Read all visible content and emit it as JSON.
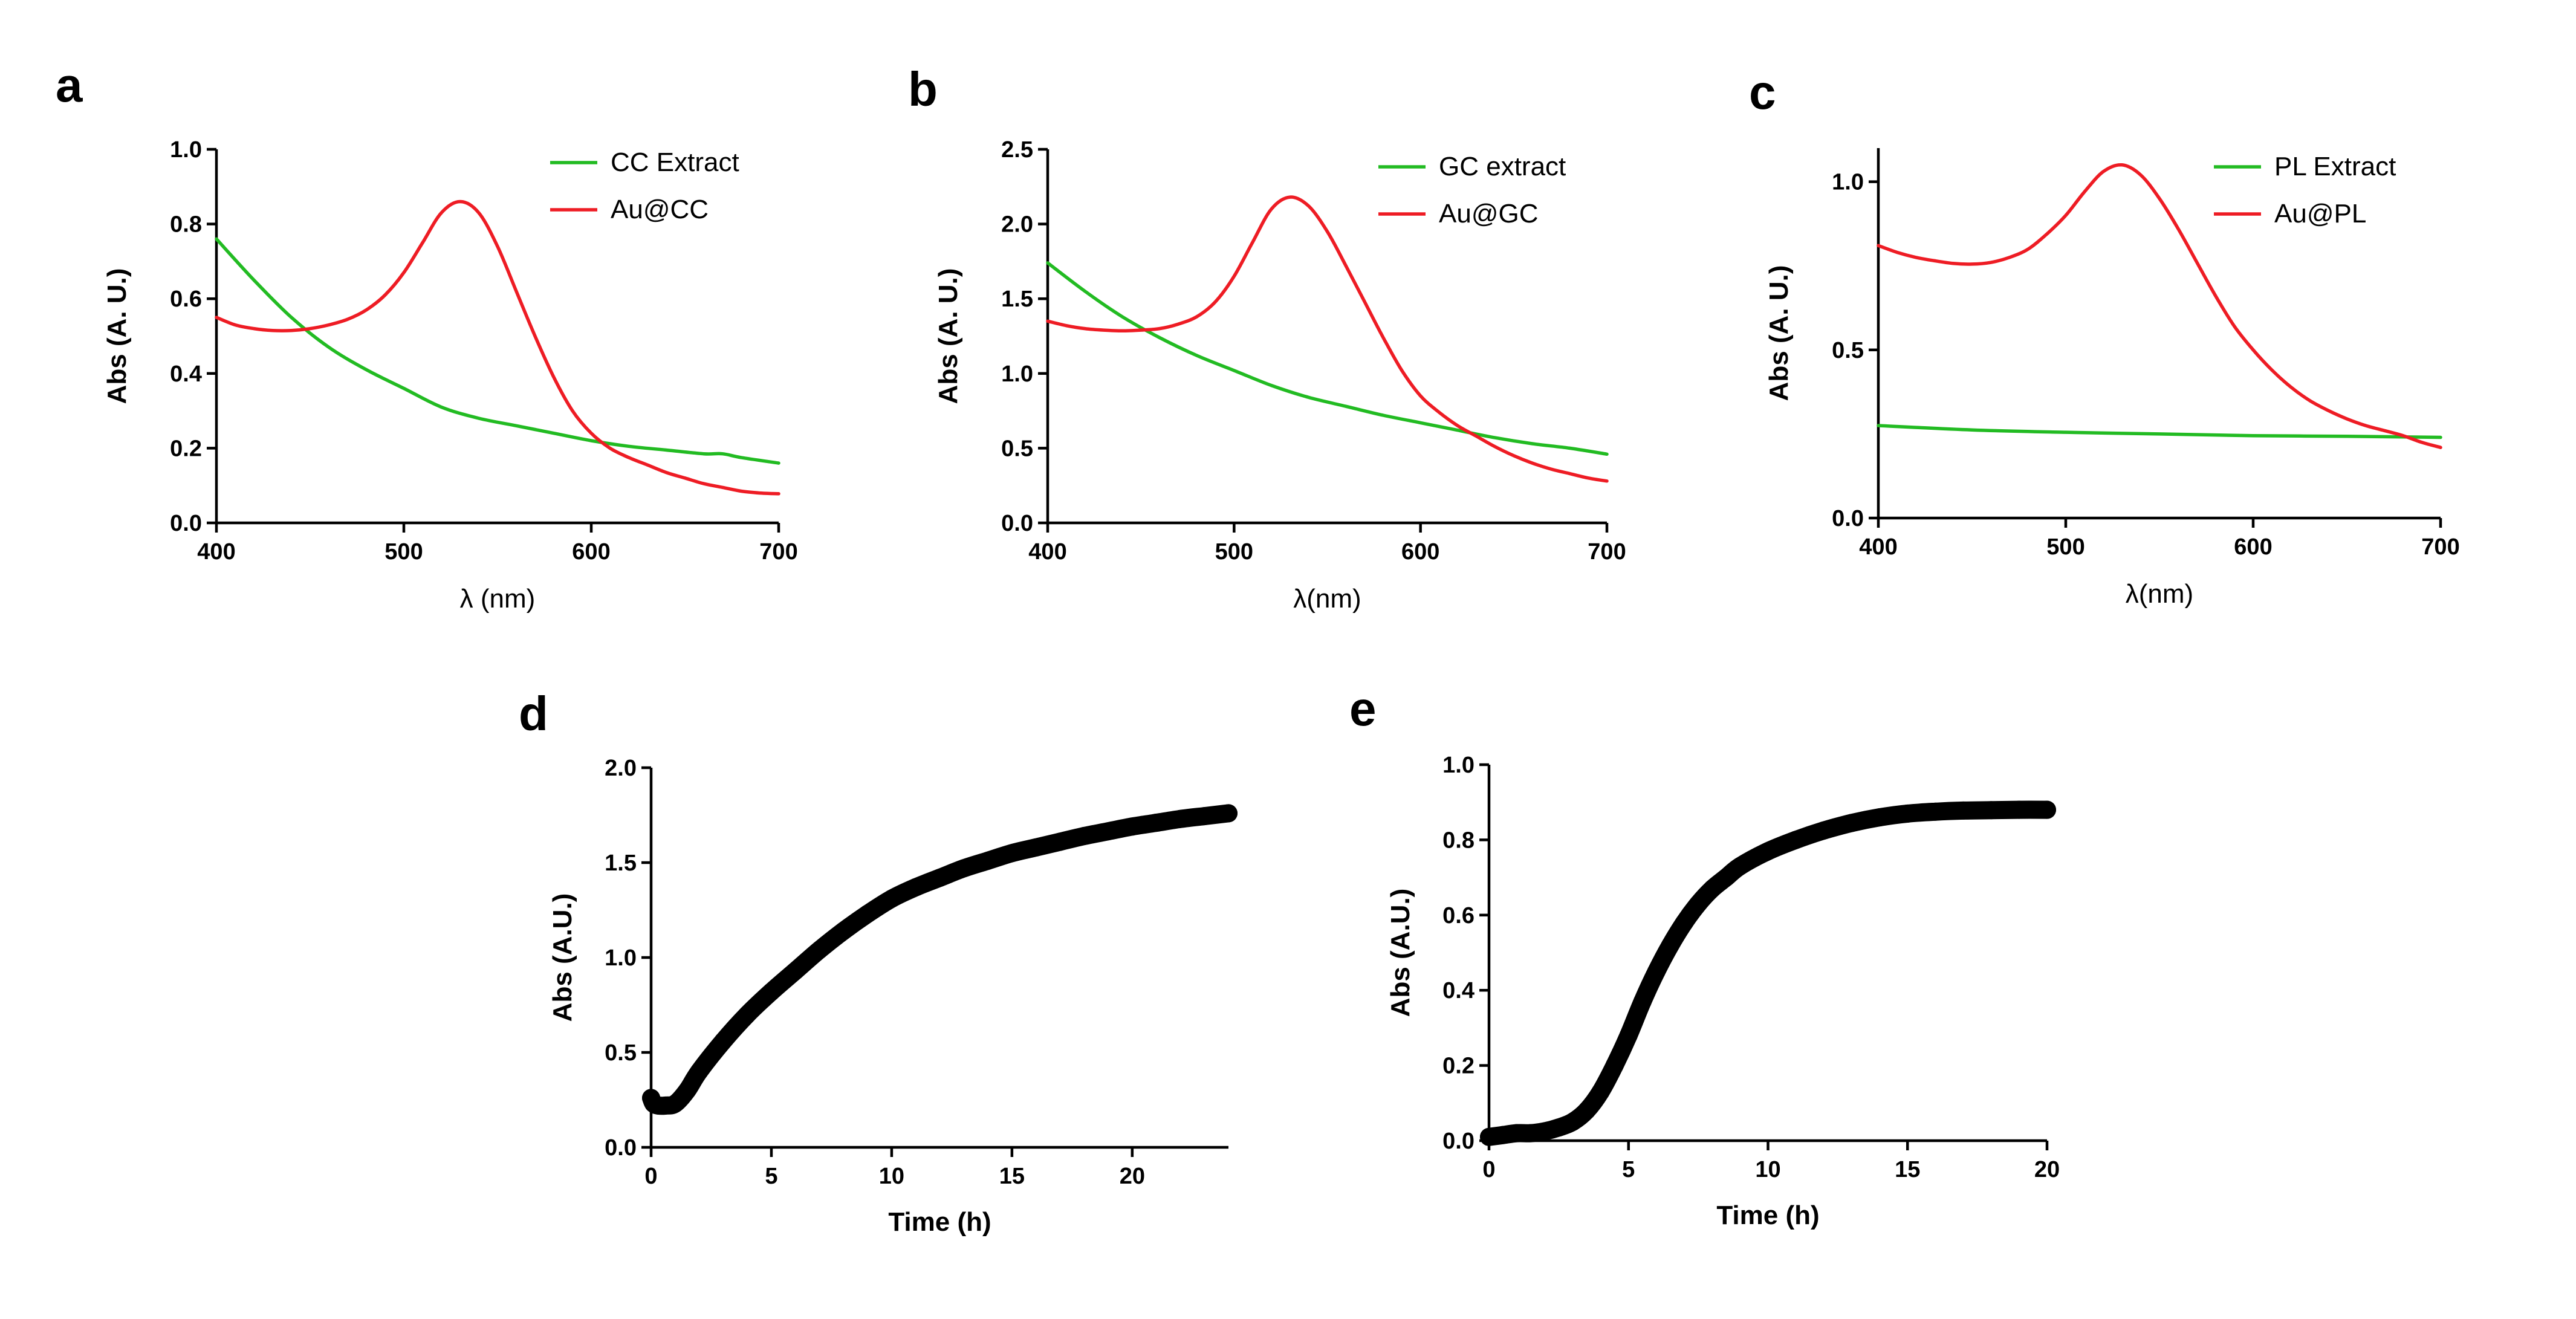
{
  "colors": {
    "extract": "#22bb22",
    "nanoparticle": "#ee1c24",
    "kinetic": "#000000"
  },
  "chart_data": [
    {
      "panel": "a",
      "type": "line",
      "xlabel": "λ (nm)",
      "ylabel": "Abs (A. U.)",
      "xlim": [
        400,
        700
      ],
      "ylim": [
        0,
        1.0
      ],
      "xticks": [
        400,
        500,
        600,
        700
      ],
      "yticks": [
        0.0,
        0.2,
        0.4,
        0.6,
        0.8,
        1.0
      ],
      "xtick_labels": [
        "400",
        "500",
        "600",
        "700"
      ],
      "ytick_labels": [
        "0.0",
        "0.2",
        "0.4",
        "0.6",
        "0.8",
        "1.0"
      ],
      "legend_position": "top-right",
      "series": [
        {
          "name": "CC Extract",
          "color": "#22bb22",
          "x": [
            400,
            420,
            440,
            460,
            480,
            500,
            520,
            540,
            560,
            580,
            600,
            620,
            640,
            660,
            670,
            680,
            700
          ],
          "values": [
            0.76,
            0.65,
            0.55,
            0.47,
            0.41,
            0.36,
            0.31,
            0.28,
            0.26,
            0.24,
            0.22,
            0.205,
            0.195,
            0.185,
            0.185,
            0.175,
            0.16
          ]
        },
        {
          "name": "Au@CC",
          "color": "#ee1c24",
          "x": [
            400,
            410,
            420,
            430,
            440,
            450,
            460,
            470,
            480,
            490,
            500,
            510,
            520,
            530,
            540,
            550,
            560,
            570,
            580,
            590,
            600,
            610,
            620,
            630,
            640,
            650,
            660,
            670,
            680,
            690,
            700
          ],
          "values": [
            0.55,
            0.53,
            0.52,
            0.515,
            0.515,
            0.52,
            0.53,
            0.545,
            0.57,
            0.61,
            0.67,
            0.75,
            0.83,
            0.86,
            0.83,
            0.74,
            0.62,
            0.5,
            0.39,
            0.3,
            0.24,
            0.2,
            0.175,
            0.155,
            0.135,
            0.12,
            0.105,
            0.095,
            0.085,
            0.08,
            0.078
          ]
        }
      ]
    },
    {
      "panel": "b",
      "type": "line",
      "xlabel": "λ(nm)",
      "ylabel": "Abs (A. U.)",
      "xlim": [
        400,
        700
      ],
      "ylim": [
        0,
        2.5
      ],
      "xticks": [
        400,
        500,
        600,
        700
      ],
      "yticks": [
        0.0,
        0.5,
        1.0,
        1.5,
        2.0,
        2.5
      ],
      "xtick_labels": [
        "400",
        "500",
        "600",
        "700"
      ],
      "ytick_labels": [
        "0.0",
        "0.5",
        "1.0",
        "1.5",
        "2.0",
        "2.5"
      ],
      "legend_position": "top-right",
      "series": [
        {
          "name": "GC extract",
          "color": "#22bb22",
          "x": [
            400,
            420,
            440,
            460,
            480,
            500,
            520,
            540,
            560,
            580,
            600,
            620,
            640,
            660,
            680,
            700
          ],
          "values": [
            1.74,
            1.55,
            1.38,
            1.24,
            1.12,
            1.02,
            0.92,
            0.84,
            0.78,
            0.72,
            0.67,
            0.62,
            0.57,
            0.53,
            0.5,
            0.46
          ]
        },
        {
          "name": "Au@GC",
          "color": "#ee1c24",
          "x": [
            400,
            410,
            420,
            430,
            440,
            450,
            460,
            470,
            480,
            490,
            500,
            510,
            520,
            530,
            540,
            550,
            560,
            570,
            580,
            590,
            600,
            610,
            620,
            630,
            640,
            650,
            660,
            670,
            680,
            690,
            700
          ],
          "values": [
            1.35,
            1.32,
            1.3,
            1.29,
            1.285,
            1.29,
            1.3,
            1.33,
            1.38,
            1.48,
            1.65,
            1.88,
            2.1,
            2.18,
            2.12,
            1.95,
            1.72,
            1.48,
            1.24,
            1.02,
            0.85,
            0.74,
            0.65,
            0.58,
            0.51,
            0.45,
            0.4,
            0.36,
            0.33,
            0.3,
            0.28
          ]
        }
      ]
    },
    {
      "panel": "c",
      "type": "line",
      "xlabel": "λ(nm)",
      "ylabel": "Abs (A. U.)",
      "xlim": [
        400,
        700
      ],
      "ylim": [
        0,
        1.1
      ],
      "xticks": [
        400,
        500,
        600,
        700
      ],
      "yticks": [
        0.0,
        0.5,
        1.0
      ],
      "xtick_labels": [
        "400",
        "500",
        "600",
        "700"
      ],
      "ytick_labels": [
        "0.0",
        "0.5",
        "1.0"
      ],
      "legend_position": "top-right",
      "series": [
        {
          "name": "PL Extract",
          "color": "#22bb22",
          "x": [
            400,
            450,
            500,
            550,
            600,
            650,
            700
          ],
          "values": [
            0.275,
            0.262,
            0.255,
            0.25,
            0.245,
            0.243,
            0.24
          ]
        },
        {
          "name": "Au@PL",
          "color": "#ee1c24",
          "x": [
            400,
            410,
            420,
            430,
            440,
            450,
            460,
            470,
            480,
            490,
            500,
            510,
            520,
            530,
            540,
            550,
            560,
            570,
            580,
            590,
            600,
            610,
            620,
            630,
            640,
            650,
            660,
            670,
            680,
            690,
            700
          ],
          "values": [
            0.81,
            0.79,
            0.775,
            0.765,
            0.757,
            0.755,
            0.76,
            0.775,
            0.8,
            0.845,
            0.9,
            0.97,
            1.03,
            1.05,
            1.02,
            0.95,
            0.86,
            0.76,
            0.66,
            0.57,
            0.5,
            0.44,
            0.39,
            0.35,
            0.32,
            0.295,
            0.275,
            0.26,
            0.245,
            0.225,
            0.21
          ]
        }
      ]
    },
    {
      "panel": "d",
      "type": "scatter",
      "xlabel": "Time (h)",
      "ylabel": "Abs (A.U.)",
      "xlim": [
        0,
        24
      ],
      "ylim": [
        0,
        2.0
      ],
      "xticks": [
        0,
        5,
        10,
        15,
        20
      ],
      "yticks": [
        0.0,
        0.5,
        1.0,
        1.5,
        2.0
      ],
      "xtick_labels": [
        "0",
        "5",
        "10",
        "15",
        "20"
      ],
      "ytick_labels": [
        "0.0",
        "0.5",
        "1.0",
        "1.5",
        "2.0"
      ],
      "series": [
        {
          "name": "Abs",
          "color": "#000000",
          "x": [
            0,
            0.1,
            0.3,
            0.6,
            1,
            1.5,
            2,
            3,
            4,
            5,
            6,
            7,
            8,
            9,
            10,
            11,
            12,
            13,
            14,
            15,
            16,
            17,
            18,
            19,
            20,
            21,
            22,
            23,
            24
          ],
          "values": [
            0.26,
            0.23,
            0.22,
            0.22,
            0.23,
            0.3,
            0.4,
            0.56,
            0.7,
            0.82,
            0.93,
            1.04,
            1.14,
            1.23,
            1.31,
            1.37,
            1.42,
            1.47,
            1.51,
            1.55,
            1.58,
            1.61,
            1.64,
            1.665,
            1.69,
            1.71,
            1.73,
            1.745,
            1.76
          ]
        }
      ]
    },
    {
      "panel": "e",
      "type": "scatter",
      "xlabel": "Time (h)",
      "ylabel": "Abs (A.U.)",
      "xlim": [
        0,
        20
      ],
      "ylim": [
        0,
        1.0
      ],
      "xticks": [
        0,
        5,
        10,
        15,
        20
      ],
      "yticks": [
        0.0,
        0.2,
        0.4,
        0.6,
        0.8,
        1.0
      ],
      "xtick_labels": [
        "0",
        "5",
        "10",
        "15",
        "20"
      ],
      "ytick_labels": [
        "0.0",
        "0.2",
        "0.4",
        "0.6",
        "0.8",
        "1.0"
      ],
      "series": [
        {
          "name": "Abs",
          "color": "#000000",
          "x": [
            0,
            0.5,
            1,
            1.5,
            2,
            2.5,
            3,
            3.5,
            4,
            4.5,
            5,
            5.5,
            6,
            6.5,
            7,
            7.5,
            8,
            8.5,
            9,
            10,
            11,
            12,
            13,
            14,
            15,
            16,
            17,
            18,
            19,
            20
          ],
          "values": [
            0.01,
            0.015,
            0.02,
            0.02,
            0.025,
            0.035,
            0.05,
            0.08,
            0.13,
            0.2,
            0.28,
            0.37,
            0.45,
            0.52,
            0.58,
            0.63,
            0.67,
            0.7,
            0.73,
            0.77,
            0.8,
            0.825,
            0.845,
            0.86,
            0.87,
            0.875,
            0.878,
            0.879,
            0.88,
            0.88
          ]
        }
      ]
    }
  ]
}
